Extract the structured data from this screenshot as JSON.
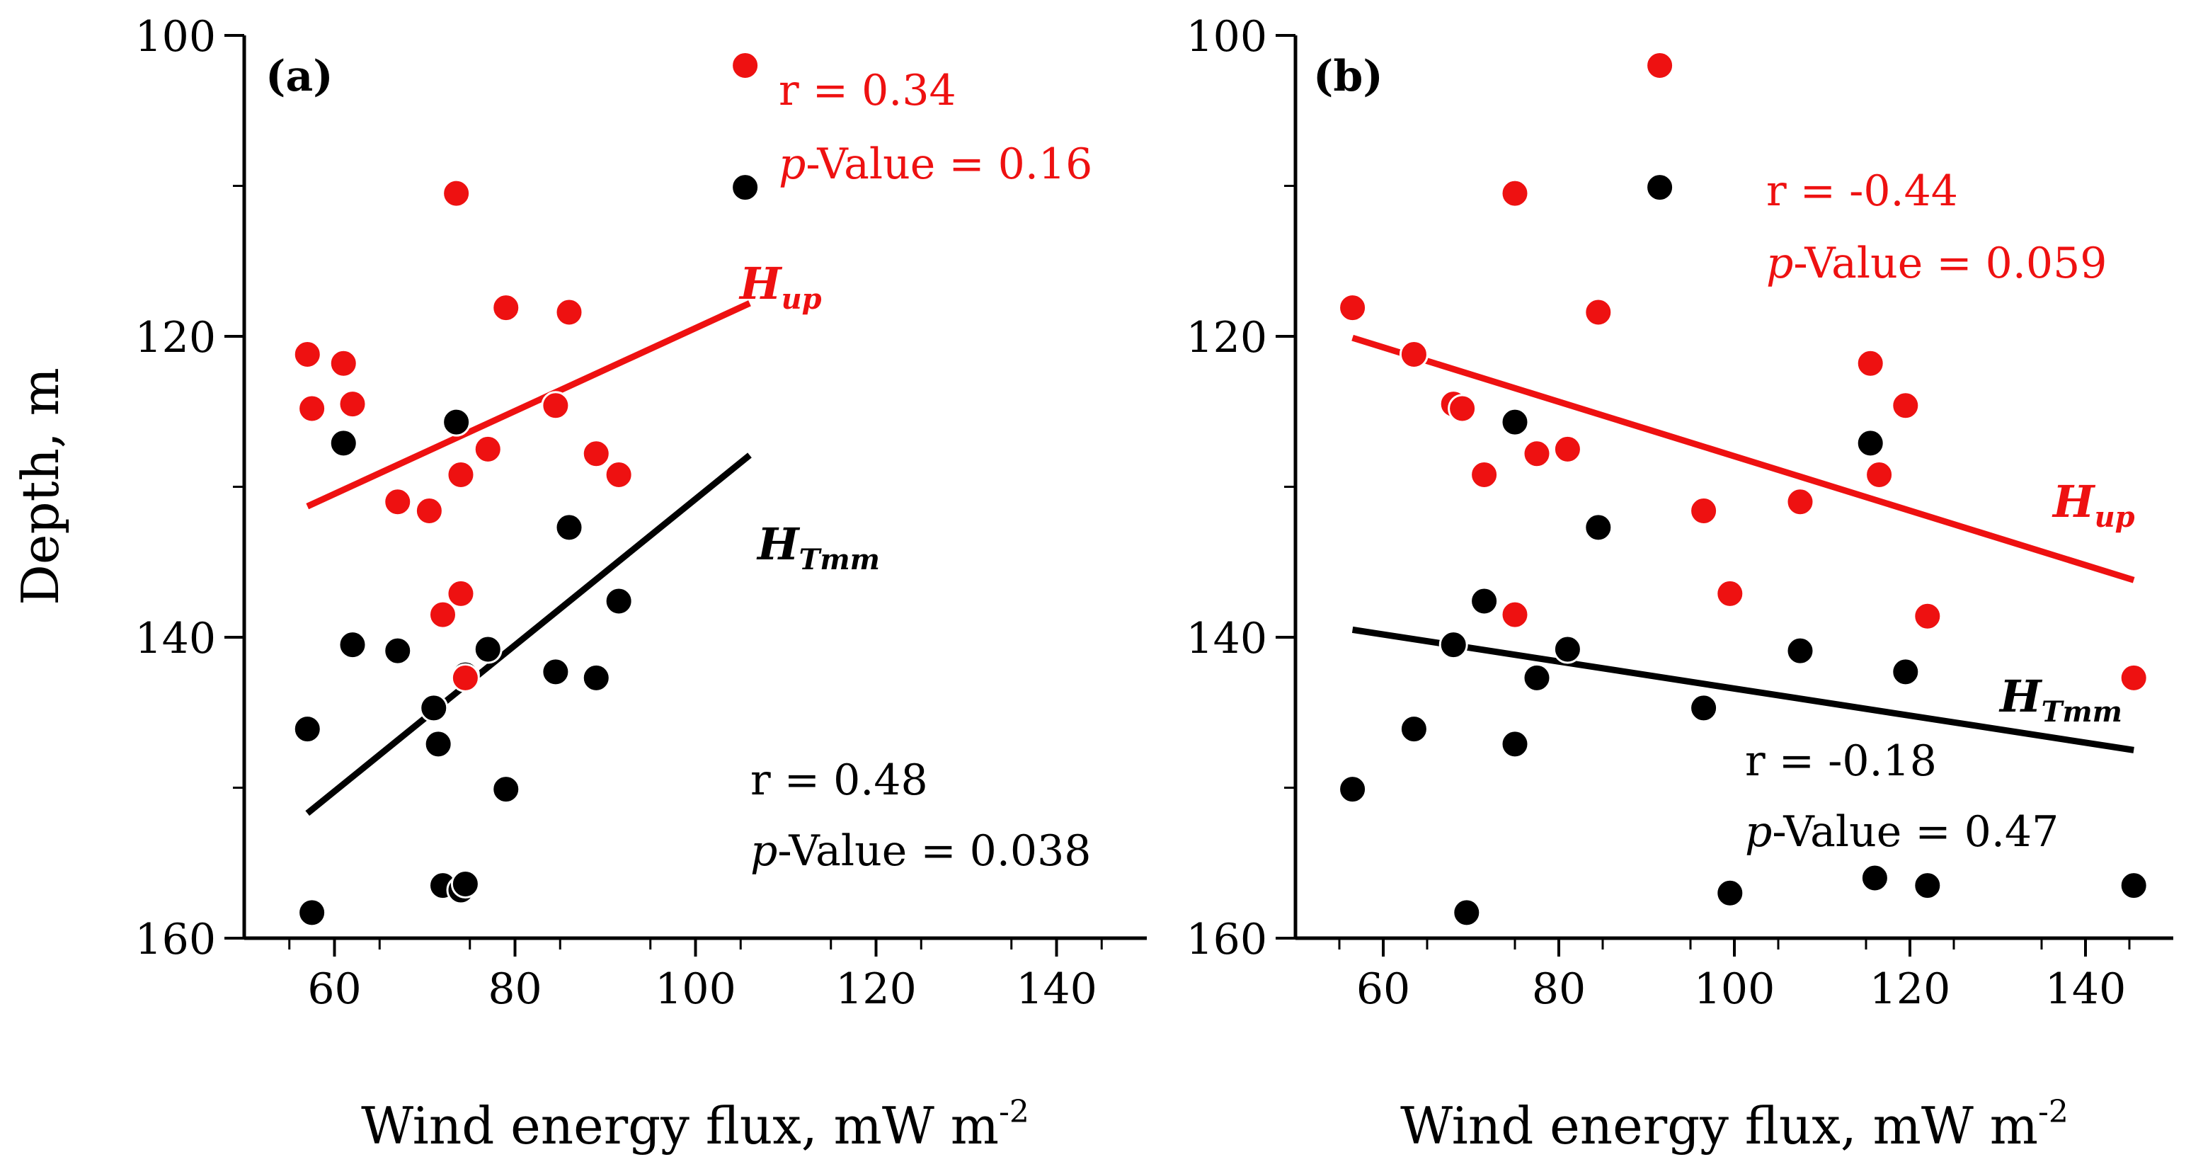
{
  "figure": {
    "colors": {
      "up": "#ee1111",
      "tmm": "#000000"
    }
  },
  "chart_data": [
    {
      "type": "scatter",
      "panel": "(a)",
      "xlabel": "Wind energy flux, mW m",
      "xlabel_sup": "-2",
      "ylabel": "Depth, m",
      "xlim": [
        50,
        150
      ],
      "ylim": [
        160,
        100
      ],
      "xticks": [
        "60",
        "80",
        "100",
        "120",
        "140"
      ],
      "yticks": [
        "100",
        "120",
        "140",
        "160"
      ],
      "series": [
        {
          "name": "H_up",
          "label_main": "H",
          "label_sub": "up",
          "color": "#ee1111",
          "r_text": "r = 0.34",
          "p_prefix": "p",
          "p_text": "-Value = 0.16",
          "trend": {
            "x": [
              57,
              106
            ],
            "y": [
              131.3,
              117.8
            ]
          },
          "points": [
            [
              57,
              121.2
            ],
            [
              57.5,
              124.8
            ],
            [
              61,
              121.8
            ],
            [
              62,
              124.5
            ],
            [
              67,
              131
            ],
            [
              70.5,
              131.6
            ],
            [
              72,
              138.5
            ],
            [
              73.5,
              110.5
            ],
            [
              74,
              137.1
            ],
            [
              74,
              129.2
            ],
            [
              74.5,
              142.7
            ],
            [
              77,
              127.5
            ],
            [
              79,
              118.1
            ],
            [
              84.5,
              124.6
            ],
            [
              86,
              118.4
            ],
            [
              89,
              127.8
            ],
            [
              91.5,
              129.2
            ],
            [
              105.5,
              102
            ]
          ]
        },
        {
          "name": "H_Tmm",
          "label_main": "H",
          "label_sub": "Tmm",
          "color": "#000000",
          "r_text": "r = 0.48",
          "p_prefix": "p",
          "p_text": "-Value = 0.038",
          "trend": {
            "x": [
              57,
              106
            ],
            "y": [
              151.7,
              127.9
            ]
          },
          "points": [
            [
              57,
              146.1
            ],
            [
              57.5,
              158.3
            ],
            [
              61,
              127.1
            ],
            [
              62,
              140.5
            ],
            [
              67,
              140.9
            ],
            [
              71,
              144.7
            ],
            [
              71.5,
              147.1
            ],
            [
              72,
              156.5
            ],
            [
              73.5,
              125.7
            ],
            [
              74,
              156.8
            ],
            [
              74.5,
              156.4
            ],
            [
              74.5,
              142.5
            ],
            [
              77,
              140.8
            ],
            [
              79,
              150.1
            ],
            [
              84.5,
              142.3
            ],
            [
              86,
              132.7
            ],
            [
              89,
              142.7
            ],
            [
              91.5,
              137.6
            ],
            [
              105.5,
              110.1
            ]
          ]
        }
      ]
    },
    {
      "type": "scatter",
      "panel": "(b)",
      "xlabel": "Wind energy flux, mW m",
      "xlabel_sup": "-2",
      "ylabel": "",
      "xlim": [
        50,
        150
      ],
      "ylim": [
        160,
        100
      ],
      "xticks": [
        "60",
        "80",
        "100",
        "120",
        "140"
      ],
      "yticks": [
        "100",
        "120",
        "140",
        "160"
      ],
      "series": [
        {
          "name": "H_up",
          "label_main": "H",
          "label_sub": "up",
          "color": "#ee1111",
          "r_text": "r = -0.44",
          "p_prefix": "p",
          "p_text": "-Value = 0.059",
          "trend": {
            "x": [
              56.5,
              145.5
            ],
            "y": [
              120.1,
              136.2
            ]
          },
          "points": [
            [
              56.5,
              118.1
            ],
            [
              63.5,
              121.2
            ],
            [
              68,
              124.5
            ],
            [
              69,
              124.8
            ],
            [
              71.5,
              129.2
            ],
            [
              75,
              110.5
            ],
            [
              75,
              138.5
            ],
            [
              77.5,
              127.8
            ],
            [
              81,
              127.5
            ],
            [
              84.5,
              118.4
            ],
            [
              96.5,
              131.6
            ],
            [
              99.5,
              137.1
            ],
            [
              91.5,
              102
            ],
            [
              107.5,
              131
            ],
            [
              115.5,
              121.8
            ],
            [
              116.5,
              129.2
            ],
            [
              119.5,
              124.6
            ],
            [
              122,
              138.6
            ],
            [
              145.5,
              142.7
            ]
          ]
        },
        {
          "name": "H_Tmm",
          "label_main": "H",
          "label_sub": "Tmm",
          "color": "#000000",
          "r_text": "r = -0.18",
          "p_prefix": "p",
          "p_text": "-Value = 0.47",
          "trend": {
            "x": [
              56.5,
              145.5
            ],
            "y": [
              139.5,
              147.5
            ]
          },
          "points": [
            [
              56.5,
              150.1
            ],
            [
              63.5,
              146.1
            ],
            [
              68,
              140.5
            ],
            [
              69.5,
              158.3
            ],
            [
              71.5,
              137.6
            ],
            [
              75,
              125.7
            ],
            [
              75,
              147.1
            ],
            [
              77.5,
              142.7
            ],
            [
              81,
              140.8
            ],
            [
              84.5,
              132.7
            ],
            [
              91.5,
              110.1
            ],
            [
              96.5,
              144.7
            ],
            [
              99.5,
              157
            ],
            [
              107.5,
              140.9
            ],
            [
              115.5,
              127.1
            ],
            [
              116,
              156
            ],
            [
              119.5,
              142.3
            ],
            [
              122,
              156.5
            ],
            [
              145.5,
              156.5
            ]
          ]
        }
      ]
    }
  ]
}
